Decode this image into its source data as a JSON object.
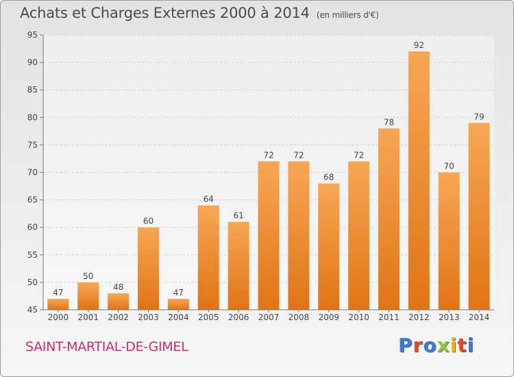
{
  "chart_data": {
    "type": "bar",
    "title": "Achats et Charges Externes 2000 à 2014",
    "subtitle": "(en milliers d'€)",
    "categories": [
      "2000",
      "2001",
      "2002",
      "2003",
      "2004",
      "2005",
      "2006",
      "2007",
      "2008",
      "2009",
      "2010",
      "2011",
      "2012",
      "2013",
      "2014"
    ],
    "values": [
      47,
      50,
      48,
      60,
      47,
      64,
      61,
      72,
      72,
      68,
      72,
      78,
      92,
      70,
      79
    ],
    "ylim": [
      45,
      95
    ],
    "yticks": [
      45,
      50,
      55,
      60,
      65,
      70,
      75,
      80,
      85,
      90,
      95
    ],
    "grid": true,
    "xlabel": "",
    "ylabel": "",
    "bar_color": "#f08c2e"
  },
  "footer": {
    "city": "SAINT-MARTIAL-DE-GIMEL",
    "logo": "Proxiti"
  },
  "colors": {
    "city": "#c0306a",
    "logo_letters": [
      "#3b7bd4",
      "#e04a2a",
      "#3b7bd4",
      "#8cc63f",
      "#f2b705",
      "#e04a2a",
      "#3b7bd4"
    ]
  }
}
